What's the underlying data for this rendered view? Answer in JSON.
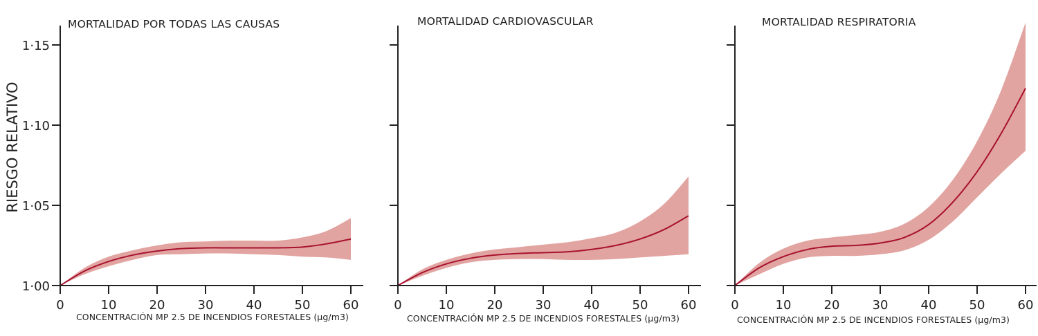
{
  "colors": {
    "line": "#a8112e",
    "band": "#e1a4a1",
    "axis": "#222222"
  },
  "chart_data": [
    {
      "type": "line",
      "title": "MORTALIDAD POR TODAS LAS CAUSAS",
      "xlabel": "CONCENTRACIÓN MP 2.5 DE INCENDIOS FORESTALES (µg/m3)",
      "ylabel": "RIESGO RELATIVO",
      "xlim": [
        0,
        62
      ],
      "ylim": [
        1.0,
        1.162
      ],
      "xticks": [
        "0",
        "10",
        "20",
        "30",
        "40",
        "50",
        "60"
      ],
      "yticks": [
        "1·00",
        "1·05",
        "1·10",
        "1·15"
      ],
      "x": [
        0,
        5,
        10,
        15,
        20,
        25,
        30,
        35,
        40,
        45,
        50,
        55,
        60
      ],
      "series": [
        {
          "name": "estimate",
          "values": [
            1.0,
            1.009,
            1.015,
            1.019,
            1.0215,
            1.023,
            1.0235,
            1.0235,
            1.0235,
            1.0235,
            1.024,
            1.026,
            1.029
          ]
        },
        {
          "name": "upper",
          "values": [
            1.0,
            1.011,
            1.018,
            1.022,
            1.025,
            1.027,
            1.0275,
            1.028,
            1.028,
            1.028,
            1.03,
            1.034,
            1.042
          ]
        },
        {
          "name": "lower",
          "values": [
            1.0,
            1.007,
            1.012,
            1.016,
            1.019,
            1.0195,
            1.02,
            1.02,
            1.0195,
            1.019,
            1.018,
            1.0175,
            1.016
          ]
        }
      ]
    },
    {
      "type": "line",
      "title": "MORTALIDAD CARDIOVASCULAR",
      "xlabel": "CONCENTRACIÓN MP 2.5 DE INCENDIOS FORESTALES (µg/m3)",
      "xlim": [
        0,
        62
      ],
      "ylim": [
        1.0,
        1.162
      ],
      "xticks": [
        "0",
        "10",
        "20",
        "30",
        "40",
        "50",
        "60"
      ],
      "x": [
        0,
        5,
        10,
        15,
        20,
        25,
        30,
        35,
        40,
        45,
        50,
        55,
        60
      ],
      "series": [
        {
          "name": "estimate",
          "values": [
            1.0,
            1.008,
            1.0135,
            1.017,
            1.019,
            1.02,
            1.0205,
            1.021,
            1.0225,
            1.025,
            1.029,
            1.035,
            1.0435
          ]
        },
        {
          "name": "upper",
          "values": [
            1.0,
            1.01,
            1.016,
            1.02,
            1.0225,
            1.024,
            1.0255,
            1.027,
            1.0295,
            1.033,
            1.04,
            1.051,
            1.068
          ]
        },
        {
          "name": "lower",
          "values": [
            1.0,
            1.006,
            1.011,
            1.0145,
            1.016,
            1.0165,
            1.0165,
            1.016,
            1.016,
            1.0165,
            1.0175,
            1.0185,
            1.0195
          ]
        }
      ]
    },
    {
      "type": "line",
      "title": "MORTALIDAD RESPIRATORIA",
      "xlabel": "CONCENTRACIÓN MP 2.5 DE INCENDIOS FORESTALES (µg/m3)",
      "xlim": [
        0,
        62
      ],
      "ylim": [
        1.0,
        1.162
      ],
      "xticks": [
        "0",
        "10",
        "20",
        "30",
        "40",
        "50",
        "60"
      ],
      "x": [
        0,
        5,
        10,
        15,
        20,
        25,
        30,
        35,
        40,
        45,
        50,
        55,
        60
      ],
      "series": [
        {
          "name": "estimate",
          "values": [
            1.0,
            1.011,
            1.018,
            1.0225,
            1.0245,
            1.025,
            1.0265,
            1.03,
            1.038,
            1.052,
            1.071,
            1.095,
            1.123
          ]
        },
        {
          "name": "upper",
          "values": [
            1.0,
            1.014,
            1.023,
            1.028,
            1.03,
            1.0315,
            1.0335,
            1.0385,
            1.049,
            1.066,
            1.09,
            1.122,
            1.164
          ]
        },
        {
          "name": "lower",
          "values": [
            1.0,
            1.007,
            1.0135,
            1.0175,
            1.0185,
            1.0185,
            1.0195,
            1.022,
            1.0285,
            1.04,
            1.055,
            1.07,
            1.084
          ]
        }
      ]
    }
  ]
}
